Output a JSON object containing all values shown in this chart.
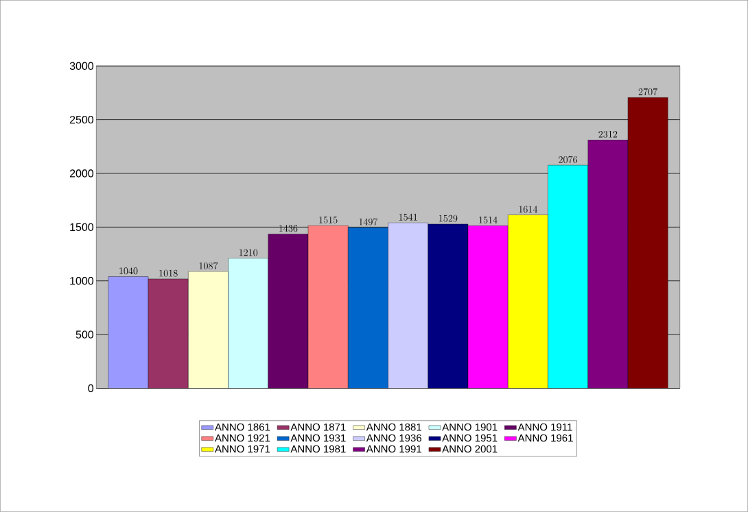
{
  "chart_data": {
    "type": "bar",
    "categories": [
      null
    ],
    "series": [
      {
        "name": "ANNO 1861",
        "color": "#9999ff",
        "values": [
          1040
        ]
      },
      {
        "name": "ANNO 1871",
        "color": "#993366",
        "values": [
          1018
        ]
      },
      {
        "name": "ANNO 1881",
        "color": "#ffffcc",
        "values": [
          1087
        ]
      },
      {
        "name": "ANNO 1901",
        "color": "#ccffff",
        "values": [
          1210
        ]
      },
      {
        "name": "ANNO 1911",
        "color": "#660066",
        "values": [
          1436
        ]
      },
      {
        "name": "ANNO 1921",
        "color": "#ff8080",
        "values": [
          1515
        ]
      },
      {
        "name": "ANNO 1931",
        "color": "#0066cc",
        "values": [
          1497
        ]
      },
      {
        "name": "ANNO 1936",
        "color": "#ccccff",
        "values": [
          1541
        ]
      },
      {
        "name": "ANNO 1951",
        "color": "#000080",
        "values": [
          1529
        ]
      },
      {
        "name": "ANNO 1961",
        "color": "#ff00ff",
        "values": [
          1514
        ]
      },
      {
        "name": "ANNO 1971",
        "color": "#ffff00",
        "values": [
          1614
        ]
      },
      {
        "name": "ANNO 1981",
        "color": "#00ffff",
        "values": [
          2076
        ]
      },
      {
        "name": "ANNO 1991",
        "color": "#800080",
        "values": [
          2312
        ]
      },
      {
        "name": "ANNO 2001",
        "color": "#800000",
        "values": [
          2707
        ]
      }
    ],
    "ylim": [
      0,
      3000
    ],
    "yticks": [
      0,
      500,
      1000,
      1500,
      2000,
      2500,
      3000
    ],
    "grid": "y",
    "legend": "bottom",
    "data_labels": true,
    "tick_labels": "y"
  }
}
